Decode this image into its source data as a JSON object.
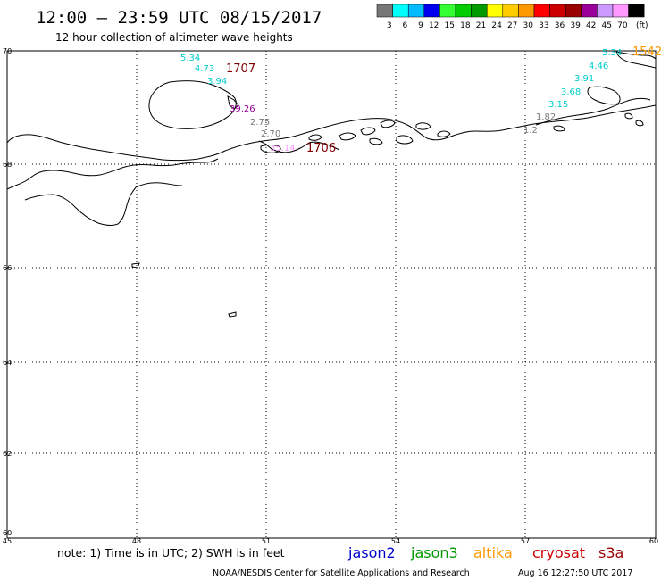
{
  "header": {
    "title": "12:00 – 23:59 UTC 08/15/2017",
    "subtitle": "12 hour collection of altimeter wave heights"
  },
  "legend": {
    "unit": "(ft)",
    "bins": [
      {
        "label": "3",
        "color": "#777777"
      },
      {
        "label": "6",
        "color": "#00ffff"
      },
      {
        "label": "9",
        "color": "#00bbff"
      },
      {
        "label": "12",
        "color": "#0000ee"
      },
      {
        "label": "15",
        "color": "#33ff33"
      },
      {
        "label": "18",
        "color": "#00cc00"
      },
      {
        "label": "21",
        "color": "#009900"
      },
      {
        "label": "24",
        "color": "#ffff00"
      },
      {
        "label": "27",
        "color": "#ffcc00"
      },
      {
        "label": "30",
        "color": "#ff9900"
      },
      {
        "label": "33",
        "color": "#ff0000"
      },
      {
        "label": "36",
        "color": "#cc0000"
      },
      {
        "label": "39",
        "color": "#990000"
      },
      {
        "label": "42",
        "color": "#990099"
      },
      {
        "label": "45",
        "color": "#cc99ff"
      },
      {
        "label": "70",
        "color": "#ff99ff"
      },
      {
        "label": "",
        "color": "#000000"
      }
    ]
  },
  "axes": {
    "lon_ticks": [
      "45",
      "48",
      "51",
      "54",
      "57",
      "60"
    ],
    "lat_ticks": [
      "70",
      "68",
      "66",
      "64",
      "62",
      "60"
    ]
  },
  "observations": [
    {
      "text": "5.34",
      "color": "#00cccc"
    },
    {
      "text": "4.73",
      "color": "#00cccc"
    },
    {
      "text": "3.94",
      "color": "#00cccc"
    },
    {
      "text": "1707",
      "color": "#800000"
    },
    {
      "text": "39.26",
      "color": "#990099"
    },
    {
      "text": "2.75",
      "color": "#777777"
    },
    {
      "text": "2.70",
      "color": "#777777"
    },
    {
      "text": "35.14",
      "color": "#ff99ff"
    },
    {
      "text": "1706",
      "color": "#800000"
    },
    {
      "text": "5.34",
      "color": "#00cccc"
    },
    {
      "text": "1542",
      "color": "#ff9900"
    },
    {
      "text": "4.46",
      "color": "#00cccc"
    },
    {
      "text": "3.91",
      "color": "#00cccc"
    },
    {
      "text": "3.68",
      "color": "#00cccc"
    },
    {
      "text": "3.15",
      "color": "#00cccc"
    },
    {
      "text": "1.82",
      "color": "#777777"
    },
    {
      "text": "1.2",
      "color": "#777777"
    }
  ],
  "footer": {
    "note": "note: 1) Time is in UTC; 2) SWH is in feet",
    "satellites": [
      {
        "name": "jason2",
        "color": "#0000cc"
      },
      {
        "name": "jason3",
        "color": "#009900"
      },
      {
        "name": "altika",
        "color": "#ff9900"
      },
      {
        "name": "cryosat",
        "color": "#cc0000"
      },
      {
        "name": "s3a",
        "color": "#990000"
      }
    ],
    "credit": "NOAA/NESDIS Center for Satellite Applications and Research",
    "timestamp": "Aug 16 12:27:50 UTC 2017"
  }
}
